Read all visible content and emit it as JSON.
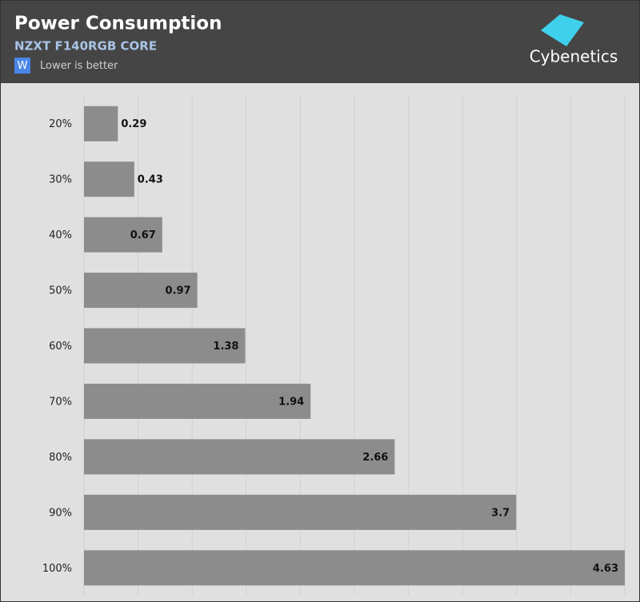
{
  "chart_data": {
    "type": "bar",
    "orientation": "horizontal",
    "title": "Power Consumption",
    "subtitle": "NZXT F140RGB CORE",
    "legend_badge": "W",
    "legend_text": "Lower is better",
    "legend_color": "#4a86e8",
    "logo": "Cybenetics",
    "categories": [
      "20%",
      "30%",
      "40%",
      "50%",
      "60%",
      "70%",
      "80%",
      "90%",
      "100%"
    ],
    "values": [
      0.29,
      0.43,
      0.67,
      0.97,
      1.38,
      1.94,
      2.66,
      3.7,
      4.63
    ],
    "color": "#8c8c8c",
    "xlim": [
      0,
      4.63
    ],
    "grid": true
  }
}
